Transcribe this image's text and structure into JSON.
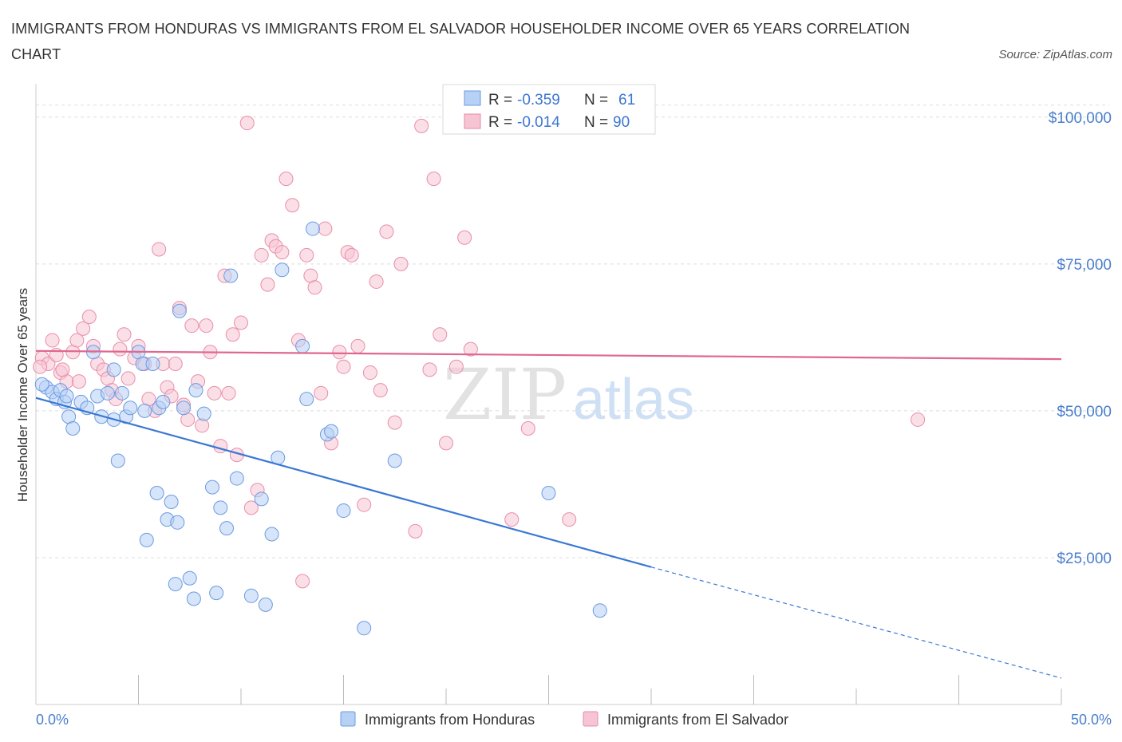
{
  "title": "IMMIGRANTS FROM HONDURAS VS IMMIGRANTS FROM EL SALVADOR HOUSEHOLDER INCOME OVER 65 YEARS CORRELATION CHART",
  "source": "Source: ZipAtlas.com",
  "watermark": {
    "zip": "ZIP",
    "atlas": "atlas"
  },
  "colors": {
    "blue": "#4a7fcc",
    "blue_fill": "#b7d0f5",
    "pink": "#e0678f",
    "pink_fill": "#f7c4d4",
    "grid": "#dddddd"
  },
  "legend": {
    "rows": [
      {
        "r_label": "R =",
        "r_value": "-0.359",
        "n_label": "N =",
        "n_value": "61"
      },
      {
        "r_label": "R =",
        "r_value": "-0.014",
        "n_label": "N =",
        "n_value": "90"
      }
    ]
  },
  "chart_data": {
    "type": "scatter",
    "xlabel": "",
    "ylabel": "Householder Income Over 65 years",
    "xlim": [
      0,
      50
    ],
    "ylim": [
      0,
      105000
    ],
    "x_tick_labels": [
      "0.0%",
      "50.0%"
    ],
    "y_ticks": [
      25000,
      50000,
      75000,
      100000
    ],
    "y_tick_labels": [
      "$25,000",
      "$50,000",
      "$75,000",
      "$100,000"
    ],
    "grid": true,
    "legend_position": "top-center",
    "series": [
      {
        "name": "Immigrants from Honduras",
        "color": "#4a7fcc",
        "trend": {
          "x0": 0,
          "y0": 52200,
          "x1": 30,
          "y1": 23400,
          "dash_to_x": 50,
          "dash_to_y": 4500
        },
        "points": [
          [
            0.5,
            54000
          ],
          [
            0.8,
            53200
          ],
          [
            1.0,
            52000
          ],
          [
            1.2,
            53500
          ],
          [
            1.4,
            51500
          ],
          [
            1.6,
            49000
          ],
          [
            1.8,
            47000
          ],
          [
            2.2,
            51500
          ],
          [
            2.8,
            60000
          ],
          [
            3.0,
            52500
          ],
          [
            3.2,
            49000
          ],
          [
            3.5,
            53000
          ],
          [
            3.8,
            48500
          ],
          [
            4.0,
            41500
          ],
          [
            4.2,
            53000
          ],
          [
            4.4,
            49000
          ],
          [
            4.6,
            50500
          ],
          [
            5.0,
            60000
          ],
          [
            5.2,
            58000
          ],
          [
            5.4,
            28000
          ],
          [
            5.7,
            58000
          ],
          [
            5.9,
            36000
          ],
          [
            6.0,
            50500
          ],
          [
            6.2,
            51500
          ],
          [
            6.4,
            31500
          ],
          [
            6.6,
            34500
          ],
          [
            6.8,
            20500
          ],
          [
            6.9,
            31000
          ],
          [
            7.0,
            67000
          ],
          [
            7.2,
            50500
          ],
          [
            7.5,
            21500
          ],
          [
            7.7,
            18000
          ],
          [
            7.8,
            53500
          ],
          [
            8.2,
            49500
          ],
          [
            8.6,
            37000
          ],
          [
            8.8,
            19000
          ],
          [
            9.0,
            33500
          ],
          [
            9.3,
            30000
          ],
          [
            9.5,
            73000
          ],
          [
            9.8,
            38500
          ],
          [
            10.5,
            18500
          ],
          [
            11.0,
            35000
          ],
          [
            11.2,
            17000
          ],
          [
            11.5,
            29000
          ],
          [
            11.8,
            42000
          ],
          [
            12.0,
            74000
          ],
          [
            13.0,
            61000
          ],
          [
            13.2,
            52000
          ],
          [
            13.5,
            81000
          ],
          [
            14.2,
            46000
          ],
          [
            14.4,
            46500
          ],
          [
            15.0,
            33000
          ],
          [
            16.0,
            13000
          ],
          [
            17.5,
            41500
          ],
          [
            25.0,
            36000
          ],
          [
            27.5,
            16000
          ],
          [
            0.3,
            54500
          ],
          [
            1.5,
            52500
          ],
          [
            2.5,
            50500
          ],
          [
            3.8,
            57000
          ],
          [
            5.3,
            50000
          ]
        ]
      },
      {
        "name": "Immigrants from El Salvador",
        "color": "#e0678f",
        "trend": {
          "x0": 0,
          "y0": 60200,
          "x1": 50,
          "y1": 58800
        },
        "points": [
          [
            0.3,
            59000
          ],
          [
            0.6,
            58000
          ],
          [
            0.8,
            62000
          ],
          [
            1.0,
            59500
          ],
          [
            1.2,
            56500
          ],
          [
            1.5,
            55000
          ],
          [
            1.8,
            60000
          ],
          [
            2.0,
            62000
          ],
          [
            2.3,
            64000
          ],
          [
            2.6,
            66000
          ],
          [
            2.8,
            61000
          ],
          [
            3.0,
            58000
          ],
          [
            3.3,
            57000
          ],
          [
            3.5,
            55500
          ],
          [
            3.7,
            53500
          ],
          [
            3.9,
            52000
          ],
          [
            4.1,
            60500
          ],
          [
            4.3,
            63000
          ],
          [
            4.5,
            55500
          ],
          [
            4.8,
            59000
          ],
          [
            5.0,
            61000
          ],
          [
            5.3,
            58000
          ],
          [
            5.5,
            52000
          ],
          [
            5.8,
            50000
          ],
          [
            6.0,
            77500
          ],
          [
            6.2,
            58000
          ],
          [
            6.4,
            54000
          ],
          [
            6.6,
            52500
          ],
          [
            6.8,
            58000
          ],
          [
            7.0,
            67500
          ],
          [
            7.2,
            51000
          ],
          [
            7.4,
            48500
          ],
          [
            7.6,
            64500
          ],
          [
            7.9,
            55000
          ],
          [
            8.1,
            47500
          ],
          [
            8.3,
            64500
          ],
          [
            8.5,
            60000
          ],
          [
            8.7,
            53000
          ],
          [
            9.0,
            44000
          ],
          [
            9.2,
            73000
          ],
          [
            9.4,
            53000
          ],
          [
            9.6,
            63000
          ],
          [
            9.8,
            42500
          ],
          [
            10.0,
            65000
          ],
          [
            10.3,
            99000
          ],
          [
            10.5,
            33500
          ],
          [
            10.8,
            36500
          ],
          [
            11.0,
            76500
          ],
          [
            11.3,
            71500
          ],
          [
            11.5,
            79000
          ],
          [
            11.7,
            78000
          ],
          [
            12.0,
            77000
          ],
          [
            12.2,
            89500
          ],
          [
            12.5,
            85000
          ],
          [
            12.8,
            62000
          ],
          [
            13.0,
            21000
          ],
          [
            13.2,
            76500
          ],
          [
            13.4,
            73000
          ],
          [
            13.6,
            71000
          ],
          [
            13.9,
            53000
          ],
          [
            14.1,
            81000
          ],
          [
            14.4,
            44500
          ],
          [
            14.8,
            60000
          ],
          [
            15.0,
            57500
          ],
          [
            15.2,
            77000
          ],
          [
            15.4,
            76500
          ],
          [
            15.7,
            61000
          ],
          [
            16.0,
            34000
          ],
          [
            16.3,
            56500
          ],
          [
            16.6,
            72000
          ],
          [
            16.8,
            53500
          ],
          [
            17.1,
            80500
          ],
          [
            17.5,
            48000
          ],
          [
            17.8,
            75000
          ],
          [
            18.5,
            29500
          ],
          [
            18.8,
            98500
          ],
          [
            19.2,
            57000
          ],
          [
            19.4,
            89500
          ],
          [
            19.7,
            63000
          ],
          [
            20.0,
            44500
          ],
          [
            20.5,
            57500
          ],
          [
            20.9,
            79500
          ],
          [
            21.2,
            60500
          ],
          [
            23.2,
            31500
          ],
          [
            24.0,
            47000
          ],
          [
            26.0,
            31500
          ],
          [
            43.0,
            48500
          ],
          [
            0.2,
            57500
          ],
          [
            1.3,
            57000
          ],
          [
            2.1,
            55000
          ]
        ]
      }
    ]
  },
  "bottom_legend": [
    "Immigrants from Honduras",
    "Immigrants from El Salvador"
  ]
}
